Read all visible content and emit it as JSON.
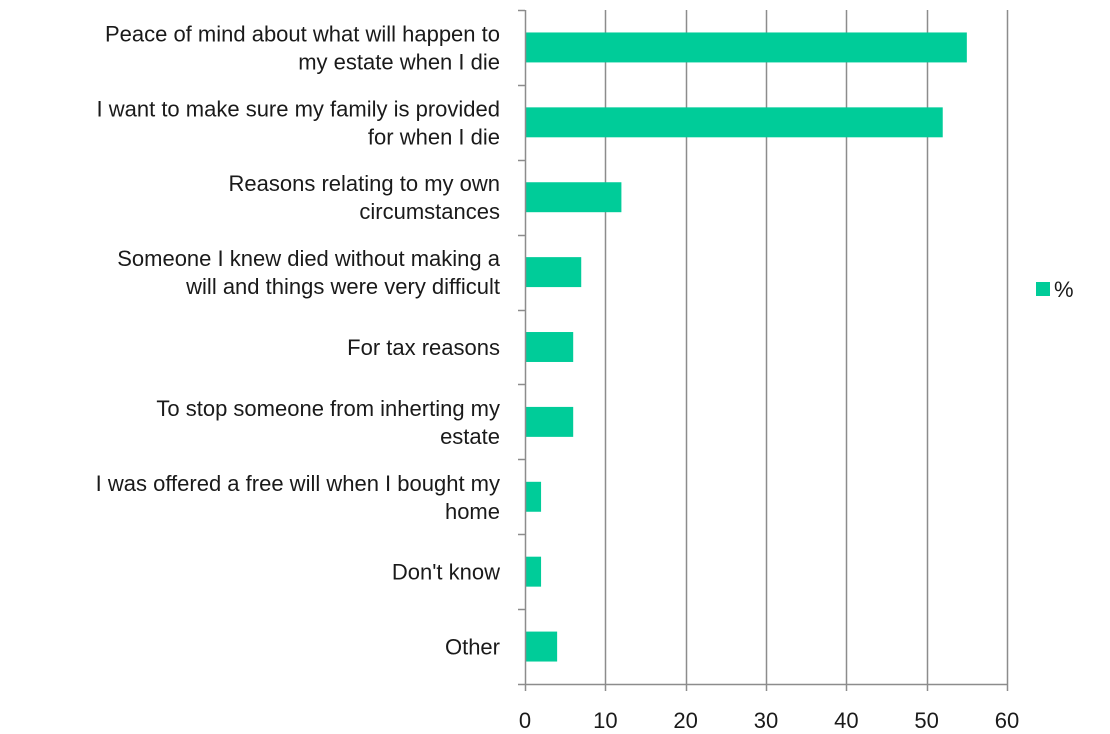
{
  "chart_data": {
    "type": "bar",
    "orientation": "horizontal",
    "categories": [
      [
        "Peace of mind about what will happen to",
        "my estate when I die"
      ],
      [
        "I want to make sure my family is provided",
        "for when I die"
      ],
      [
        "Reasons relating to my own",
        "circumstances"
      ],
      [
        "Someone I knew died without making a",
        "will and things were very difficult"
      ],
      [
        "For tax reasons"
      ],
      [
        "To stop someone from inherting my",
        "estate"
      ],
      [
        "I was offered a free will when I bought my",
        "home"
      ],
      [
        "Don't know"
      ],
      [
        "Other"
      ]
    ],
    "series": [
      {
        "name": "%",
        "color": "#00cc99",
        "values": [
          55,
          52,
          12,
          7,
          6,
          6,
          2,
          2,
          4
        ]
      }
    ],
    "xlim": [
      0,
      60
    ],
    "xticks": [
      0,
      10,
      20,
      30,
      40,
      50,
      60
    ],
    "grid": "vertical",
    "legend": "right"
  }
}
